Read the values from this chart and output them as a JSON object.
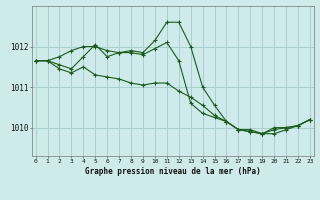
{
  "title": "Graphe pression niveau de la mer (hPa)",
  "background_color": "#ceeaea",
  "grid_color": "#aacfcf",
  "line_color": "#1a5c1a",
  "marker": "+",
  "x_ticks": [
    0,
    1,
    2,
    3,
    4,
    5,
    6,
    7,
    8,
    9,
    10,
    11,
    12,
    13,
    14,
    15,
    16,
    17,
    18,
    19,
    20,
    21,
    22,
    23
  ],
  "y_ticks": [
    1010,
    1011,
    1012
  ],
  "ylim": [
    1009.3,
    1013.0
  ],
  "xlim": [
    -0.3,
    23.3
  ],
  "series1": [
    1011.65,
    1011.65,
    1011.75,
    1011.9,
    1012.0,
    1012.0,
    1011.9,
    1011.85,
    1011.85,
    1011.8,
    1011.95,
    1012.1,
    1011.65,
    1010.6,
    1010.35,
    1010.25,
    1010.15,
    1009.95,
    1009.95,
    1009.85,
    1010.0,
    1010.0,
    1010.05,
    1010.2
  ],
  "series2": [
    1011.65,
    1011.65,
    1011.55,
    1011.45,
    1011.75,
    1012.05,
    1011.75,
    1011.85,
    1011.9,
    1011.85,
    1012.15,
    1012.6,
    1012.6,
    1012.0,
    1011.0,
    1010.55,
    1010.15,
    1009.95,
    1009.9,
    1009.85,
    1009.95,
    1010.0,
    1010.05,
    1010.2
  ],
  "series3": [
    1011.65,
    1011.65,
    1011.45,
    1011.35,
    1011.5,
    1011.3,
    1011.25,
    1011.2,
    1011.1,
    1011.05,
    1011.1,
    1011.1,
    1010.9,
    1010.75,
    1010.55,
    1010.3,
    1010.15,
    1009.95,
    1009.9,
    1009.85,
    1009.85,
    1009.95,
    1010.05,
    1010.2
  ]
}
